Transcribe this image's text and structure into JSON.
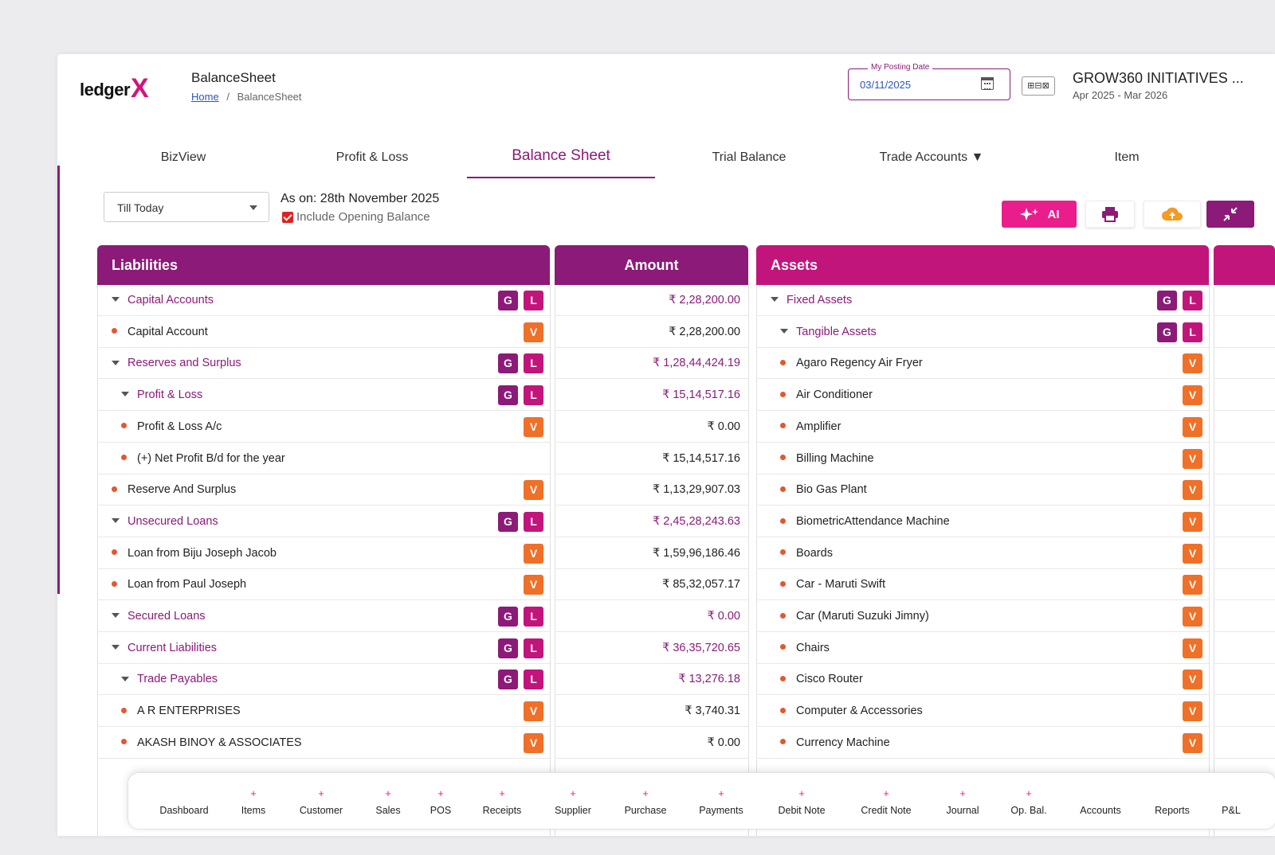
{
  "app": {
    "logo_text": "ledger",
    "logo_mark": "X",
    "page_title": "BalanceSheet",
    "breadcrumb": {
      "home": "Home",
      "separator": "/",
      "current": "BalanceSheet"
    },
    "posting_date": {
      "label": "My Posting Date",
      "value": "03/11/2025"
    },
    "company": {
      "name": "GROW360 INITIATIVES ...",
      "period": "Apr 2025 - Mar 2026",
      "icon_text": "⊞⊟⊠"
    }
  },
  "tabs": [
    {
      "label": "BizView"
    },
    {
      "label": "Profit & Loss"
    },
    {
      "label": "Balance Sheet"
    },
    {
      "label": "Trial Balance"
    },
    {
      "label": "Trade Accounts ▼"
    },
    {
      "label": "Item"
    }
  ],
  "filters": {
    "period": "Till Today",
    "as_on": "As on: 28th November 2025",
    "include_opening_balance": "Include Opening Balance"
  },
  "toolbar": {
    "ai_label": "AI"
  },
  "table": {
    "liabilities_header": "Liabilities",
    "amount_header": "Amount",
    "assets_header": "Assets",
    "liabilities": [
      {
        "name": "Capital Accounts",
        "level": 0,
        "group": true,
        "badges": "GL",
        "amount": "₹ 2,28,200.00"
      },
      {
        "name": "Capital Account",
        "level": 0,
        "group": false,
        "badges": "V",
        "amount": "₹ 2,28,200.00"
      },
      {
        "name": "Reserves and Surplus",
        "level": 0,
        "group": true,
        "badges": "GL",
        "amount": "₹ 1,28,44,424.19"
      },
      {
        "name": "Profit & Loss",
        "level": 1,
        "group": true,
        "badges": "GL",
        "amount": "₹ 15,14,517.16"
      },
      {
        "name": "Profit & Loss A/c",
        "level": 1,
        "group": false,
        "badges": "V",
        "amount": "₹ 0.00"
      },
      {
        "name": "(+) Net Profit B/d for the year",
        "level": 1,
        "group": false,
        "badges": "",
        "amount": "₹ 15,14,517.16"
      },
      {
        "name": "Reserve And Surplus",
        "level": 0,
        "group": false,
        "badges": "V",
        "amount": "₹ 1,13,29,907.03"
      },
      {
        "name": "Unsecured Loans",
        "level": 0,
        "group": true,
        "badges": "GL",
        "amount": "₹ 2,45,28,243.63"
      },
      {
        "name": "Loan from Biju Joseph Jacob",
        "level": 0,
        "group": false,
        "badges": "V",
        "amount": "₹ 1,59,96,186.46"
      },
      {
        "name": "Loan from Paul Joseph",
        "level": 0,
        "group": false,
        "badges": "V",
        "amount": "₹ 85,32,057.17"
      },
      {
        "name": "Secured Loans",
        "level": 0,
        "group": true,
        "badges": "GL",
        "amount": "₹ 0.00"
      },
      {
        "name": "Current Liabilities",
        "level": 0,
        "group": true,
        "badges": "GL",
        "amount": "₹ 36,35,720.65"
      },
      {
        "name": "Trade Payables",
        "level": 1,
        "group": true,
        "badges": "GL",
        "amount": "₹ 13,276.18"
      },
      {
        "name": "A R ENTERPRISES",
        "level": 1,
        "group": false,
        "badges": "V",
        "amount": "₹ 3,740.31"
      },
      {
        "name": "AKASH BINOY & ASSOCIATES",
        "level": 1,
        "group": false,
        "badges": "V",
        "amount": "₹ 0.00"
      }
    ],
    "assets": [
      {
        "name": "Fixed Assets",
        "level": 0,
        "group": true,
        "badges": "GL"
      },
      {
        "name": "Tangible Assets",
        "level": 1,
        "group": true,
        "badges": "GL"
      },
      {
        "name": "Agaro Regency Air Fryer",
        "level": 1,
        "group": false,
        "badges": "V"
      },
      {
        "name": "Air Conditioner",
        "level": 1,
        "group": false,
        "badges": "V"
      },
      {
        "name": "Amplifier",
        "level": 1,
        "group": false,
        "badges": "V"
      },
      {
        "name": "Billing Machine",
        "level": 1,
        "group": false,
        "badges": "V"
      },
      {
        "name": "Bio Gas Plant",
        "level": 1,
        "group": false,
        "badges": "V"
      },
      {
        "name": "BiometricAttendance Machine",
        "level": 1,
        "group": false,
        "badges": "V"
      },
      {
        "name": "Boards",
        "level": 1,
        "group": false,
        "badges": "V"
      },
      {
        "name": "Car - Maruti Swift",
        "level": 1,
        "group": false,
        "badges": "V"
      },
      {
        "name": "Car (Maruti Suzuki Jimny)",
        "level": 1,
        "group": false,
        "badges": "V"
      },
      {
        "name": "Chairs",
        "level": 1,
        "group": false,
        "badges": "V"
      },
      {
        "name": "Cisco Router",
        "level": 1,
        "group": false,
        "badges": "V"
      },
      {
        "name": "Computer & Accessories",
        "level": 1,
        "group": false,
        "badges": "V"
      },
      {
        "name": "Currency Machine",
        "level": 1,
        "group": false,
        "badges": "V"
      }
    ]
  },
  "bottom_nav": [
    {
      "label": "Dashboard",
      "plus": false
    },
    {
      "label": "Items",
      "plus": true
    },
    {
      "label": "Customer",
      "plus": true
    },
    {
      "label": "Sales",
      "plus": true
    },
    {
      "label": "POS",
      "plus": true
    },
    {
      "label": "Receipts",
      "plus": true
    },
    {
      "label": "Supplier",
      "plus": true
    },
    {
      "label": "Purchase",
      "plus": true
    },
    {
      "label": "Payments",
      "plus": true
    },
    {
      "label": "Debit Note",
      "plus": true
    },
    {
      "label": "Credit Note",
      "plus": true
    },
    {
      "label": "Journal",
      "plus": true
    },
    {
      "label": "Op. Bal.",
      "plus": true
    },
    {
      "label": "Accounts",
      "plus": false
    },
    {
      "label": "Reports",
      "plus": false
    },
    {
      "label": "P&L",
      "plus": false
    }
  ],
  "colors": {
    "primary": "#8c1a78",
    "accent": "#c1157c",
    "voucher": "#f07028",
    "ai": "#e91e8c"
  }
}
